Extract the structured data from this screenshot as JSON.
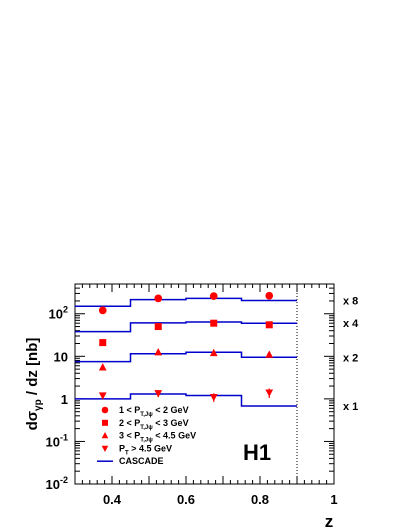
{
  "chart_data": {
    "type": "scatter",
    "title": "",
    "xlabel": "z",
    "ylabel": "dσγp / dz [nb]",
    "ylabel_parts": {
      "main": "dσ",
      "sub": "γp",
      "rest": " / dz [nb]"
    },
    "xlim": [
      0.3,
      1.0
    ],
    "ylim": [
      0.01,
      500
    ],
    "yscale": "log",
    "x_ticks": [
      "0.4",
      "0.6",
      "0.8",
      "1"
    ],
    "y_ticks": [
      {
        "base": "10",
        "exp": "-2"
      },
      {
        "base": "10",
        "exp": "-1"
      },
      {
        "base": "1",
        "exp": ""
      },
      {
        "base": "10",
        "exp": ""
      },
      {
        "base": "10",
        "exp": "2"
      }
    ],
    "experiment_label": "H1",
    "z_cutoff": 0.9,
    "legend": {
      "placement": "bottom-left",
      "entries": [
        {
          "marker": "circle",
          "pre": "1 < P",
          "sub": "T,Jψ",
          "post": " < 2 GeV"
        },
        {
          "marker": "square",
          "pre": "2 < P",
          "sub": "T,Jψ",
          "post": " < 3 GeV"
        },
        {
          "marker": "triangle-up",
          "pre": "3 < P",
          "sub": "T,Jψ",
          "post": " < 4.5 GeV"
        },
        {
          "marker": "triangle-down",
          "pre": "P",
          "sub": "T",
          "post": " > 4.5 GeV"
        },
        {
          "marker": "line",
          "pre": "CASCADE",
          "sub": "",
          "post": ""
        }
      ]
    },
    "series": [
      {
        "name": "1 < PT,Jψ < 2 GeV",
        "marker": "circle",
        "scale_label": "x 8",
        "x": [
          0.375,
          0.525,
          0.675,
          0.825
        ],
        "y": [
          120,
          230,
          260,
          265
        ],
        "yerr": [
          0,
          0,
          0,
          0
        ],
        "cascade": {
          "edges": [
            0.3,
            0.45,
            0.6,
            0.75,
            0.9
          ],
          "values": [
            150,
            215,
            230,
            205
          ]
        }
      },
      {
        "name": "2 < PT,Jψ < 3 GeV",
        "marker": "square",
        "scale_label": "x 4",
        "x": [
          0.375,
          0.525,
          0.675,
          0.825
        ],
        "y": [
          21,
          50,
          60,
          55
        ],
        "yerr": [
          3,
          4,
          4,
          4
        ],
        "cascade": {
          "edges": [
            0.3,
            0.45,
            0.6,
            0.75,
            0.9
          ],
          "values": [
            38,
            61,
            64,
            60
          ]
        }
      },
      {
        "name": "3 < PT,Jψ < 4.5 GeV",
        "marker": "triangle-up",
        "scale_label": "x 2",
        "x": [
          0.375,
          0.525,
          0.675,
          0.825
        ],
        "y": [
          5.5,
          12.5,
          12.0,
          11.0
        ],
        "yerr": [
          0.8,
          1.8,
          1.6,
          1.6
        ],
        "cascade": {
          "edges": [
            0.3,
            0.45,
            0.6,
            0.75,
            0.9
          ],
          "values": [
            7.5,
            11.5,
            12.5,
            9.5
          ]
        }
      },
      {
        "name": "PT > 4.5 GeV",
        "marker": "triangle-down",
        "scale_label": "x 1",
        "x": [
          0.375,
          0.525,
          0.675,
          0.825
        ],
        "y": [
          1.2,
          1.35,
          1.1,
          1.4
        ],
        "yerr": [
          0.2,
          0.25,
          0.25,
          0.35
        ],
        "cascade": {
          "edges": [
            0.3,
            0.45,
            0.6,
            0.75,
            0.9
          ],
          "values": [
            1.0,
            1.3,
            1.2,
            0.68
          ]
        }
      }
    ],
    "colors": {
      "data": "#ff0000",
      "model": "#0000cc",
      "axis": "#000000"
    }
  }
}
